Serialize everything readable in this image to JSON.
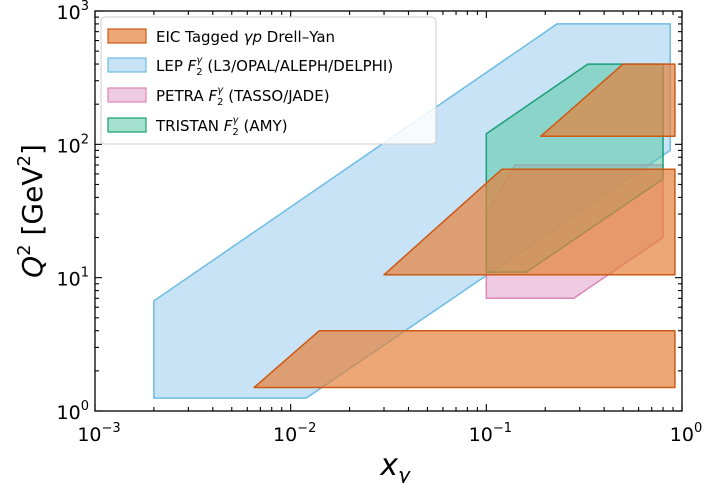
{
  "chart_data": {
    "type": "area",
    "xlabel": {
      "base": "x",
      "sub": "γ"
    },
    "ylabel": {
      "main": "Q",
      "sup": "2",
      "unit_open": " [GeV",
      "unit_sup": "2",
      "unit_close": "]"
    },
    "xscale": "log",
    "yscale": "log",
    "xlim": [
      0.001,
      1
    ],
    "ylim": [
      1,
      1000
    ],
    "grid": false,
    "legend_position": "top-left",
    "x_ticks": [
      {
        "value": 0.001,
        "base": "10",
        "exp": "−3"
      },
      {
        "value": 0.01,
        "base": "10",
        "exp": "−2"
      },
      {
        "value": 0.1,
        "base": "10",
        "exp": "−1"
      },
      {
        "value": 1,
        "base": "10",
        "exp": "0"
      }
    ],
    "y_ticks": [
      {
        "value": 1,
        "base": "10",
        "exp": "0"
      },
      {
        "value": 10,
        "base": "10",
        "exp": "1"
      },
      {
        "value": 100,
        "base": "10",
        "exp": "2"
      },
      {
        "value": 1000,
        "base": "10",
        "exp": "3"
      }
    ],
    "series": [
      {
        "legend": {
          "pre": "LEP ",
          "F": "F",
          "sub": "2",
          "sup": "γ",
          "post": " (L3/OPAL/ALEPH/DELPHI)"
        },
        "fill": "#c8e2f6",
        "stroke": "#6bbde3",
        "regions": [
          [
            [
              0.002,
              1.25
            ],
            [
              0.012,
              1.25
            ],
            [
              0.87,
              90
            ],
            [
              0.87,
              800
            ],
            [
              0.23,
              800
            ],
            [
              0.002,
              6.7
            ]
          ]
        ]
      },
      {
        "legend": {
          "pre": "PETRA ",
          "F": "F",
          "sub": "2",
          "sup": "γ",
          "post": " (TASSO/JADE)"
        },
        "fill": "rgba(226,160,200,0.55)",
        "stroke": "#d986b8",
        "regions": [
          [
            [
              0.1,
              7
            ],
            [
              0.28,
              7
            ],
            [
              0.8,
              20
            ],
            [
              0.8,
              70
            ],
            [
              0.14,
              70
            ],
            [
              0.1,
              30
            ]
          ]
        ]
      },
      {
        "legend": {
          "pre": "TRISTAN ",
          "F": "F",
          "sub": "2",
          "sup": "γ",
          "post": " (AMY)"
        },
        "fill": "rgba(90,200,165,0.55)",
        "stroke": "#1a9e77",
        "regions": [
          [
            [
              0.1,
              11
            ],
            [
              0.16,
              11
            ],
            [
              0.8,
              55
            ],
            [
              0.8,
              400
            ],
            [
              0.33,
              400
            ],
            [
              0.1,
              120
            ]
          ]
        ]
      },
      {
        "legend": {
          "pre": "EIC Tagged ",
          "gamma": "γ",
          "p": "p",
          "post": " Drell–Yan"
        },
        "fill": "rgba(230,130,60,0.7)",
        "stroke": "#cc5a13",
        "regions": [
          [
            [
              0.0065,
              1.5
            ],
            [
              0.92,
              1.5
            ],
            [
              0.92,
              4
            ],
            [
              0.014,
              4
            ]
          ],
          [
            [
              0.03,
              10.5
            ],
            [
              0.92,
              10.5
            ],
            [
              0.92,
              65
            ],
            [
              0.12,
              65
            ]
          ],
          [
            [
              0.19,
              115
            ],
            [
              0.92,
              115
            ],
            [
              0.92,
              400
            ],
            [
              0.5,
              400
            ]
          ]
        ]
      }
    ]
  }
}
